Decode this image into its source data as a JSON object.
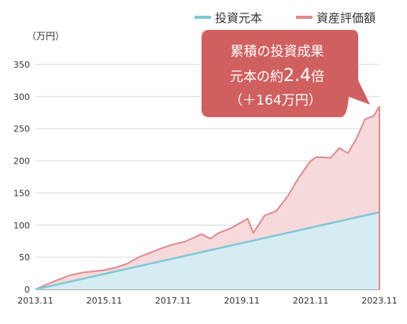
{
  "chart_data": {
    "type": "area",
    "ylabel": "（万円）",
    "ylim": [
      0,
      350
    ],
    "yticks": [
      0,
      50,
      100,
      150,
      200,
      250,
      300,
      350
    ],
    "x_ticks": [
      "2013.11",
      "2015.11",
      "2017.11",
      "2019.11",
      "2021.11",
      "2023.11"
    ],
    "legend_position": "top-right",
    "grid": true,
    "series": [
      {
        "name": "投資元本",
        "color": "#7ec8d8",
        "fill": "#d6ecf3",
        "x": [
          "2013.11",
          "2023.11"
        ],
        "values": [
          0,
          120
        ]
      },
      {
        "name": "資産評価額",
        "color": "#e08a8e",
        "fill": "#f6dadb",
        "x": [
          "2013.11",
          "2014.03",
          "2014.07",
          "2014.11",
          "2015.03",
          "2015.07",
          "2015.11",
          "2016.03",
          "2016.07",
          "2016.11",
          "2017.03",
          "2017.07",
          "2017.11",
          "2018.03",
          "2018.07",
          "2018.09",
          "2018.12",
          "2019.03",
          "2019.07",
          "2019.11",
          "2020.01",
          "2020.03",
          "2020.07",
          "2020.11",
          "2021.03",
          "2021.07",
          "2021.11",
          "2022.01",
          "2022.06",
          "2022.09",
          "2022.12",
          "2023.03",
          "2023.06",
          "2023.09",
          "2023.11"
        ],
        "values": [
          0,
          8,
          15,
          22,
          26,
          28,
          30,
          34,
          40,
          50,
          57,
          64,
          70,
          74,
          82,
          86,
          79,
          88,
          95,
          105,
          110,
          88,
          115,
          122,
          145,
          175,
          200,
          206,
          205,
          220,
          212,
          235,
          265,
          270,
          285
        ]
      }
    ],
    "annotation": {
      "line1": "累積の投資成果",
      "line2_prefix": "元本の約",
      "line2_number": "2.4",
      "line2_suffix": "倍",
      "line3": "（＋164万円）",
      "color": "#d0605f"
    }
  }
}
